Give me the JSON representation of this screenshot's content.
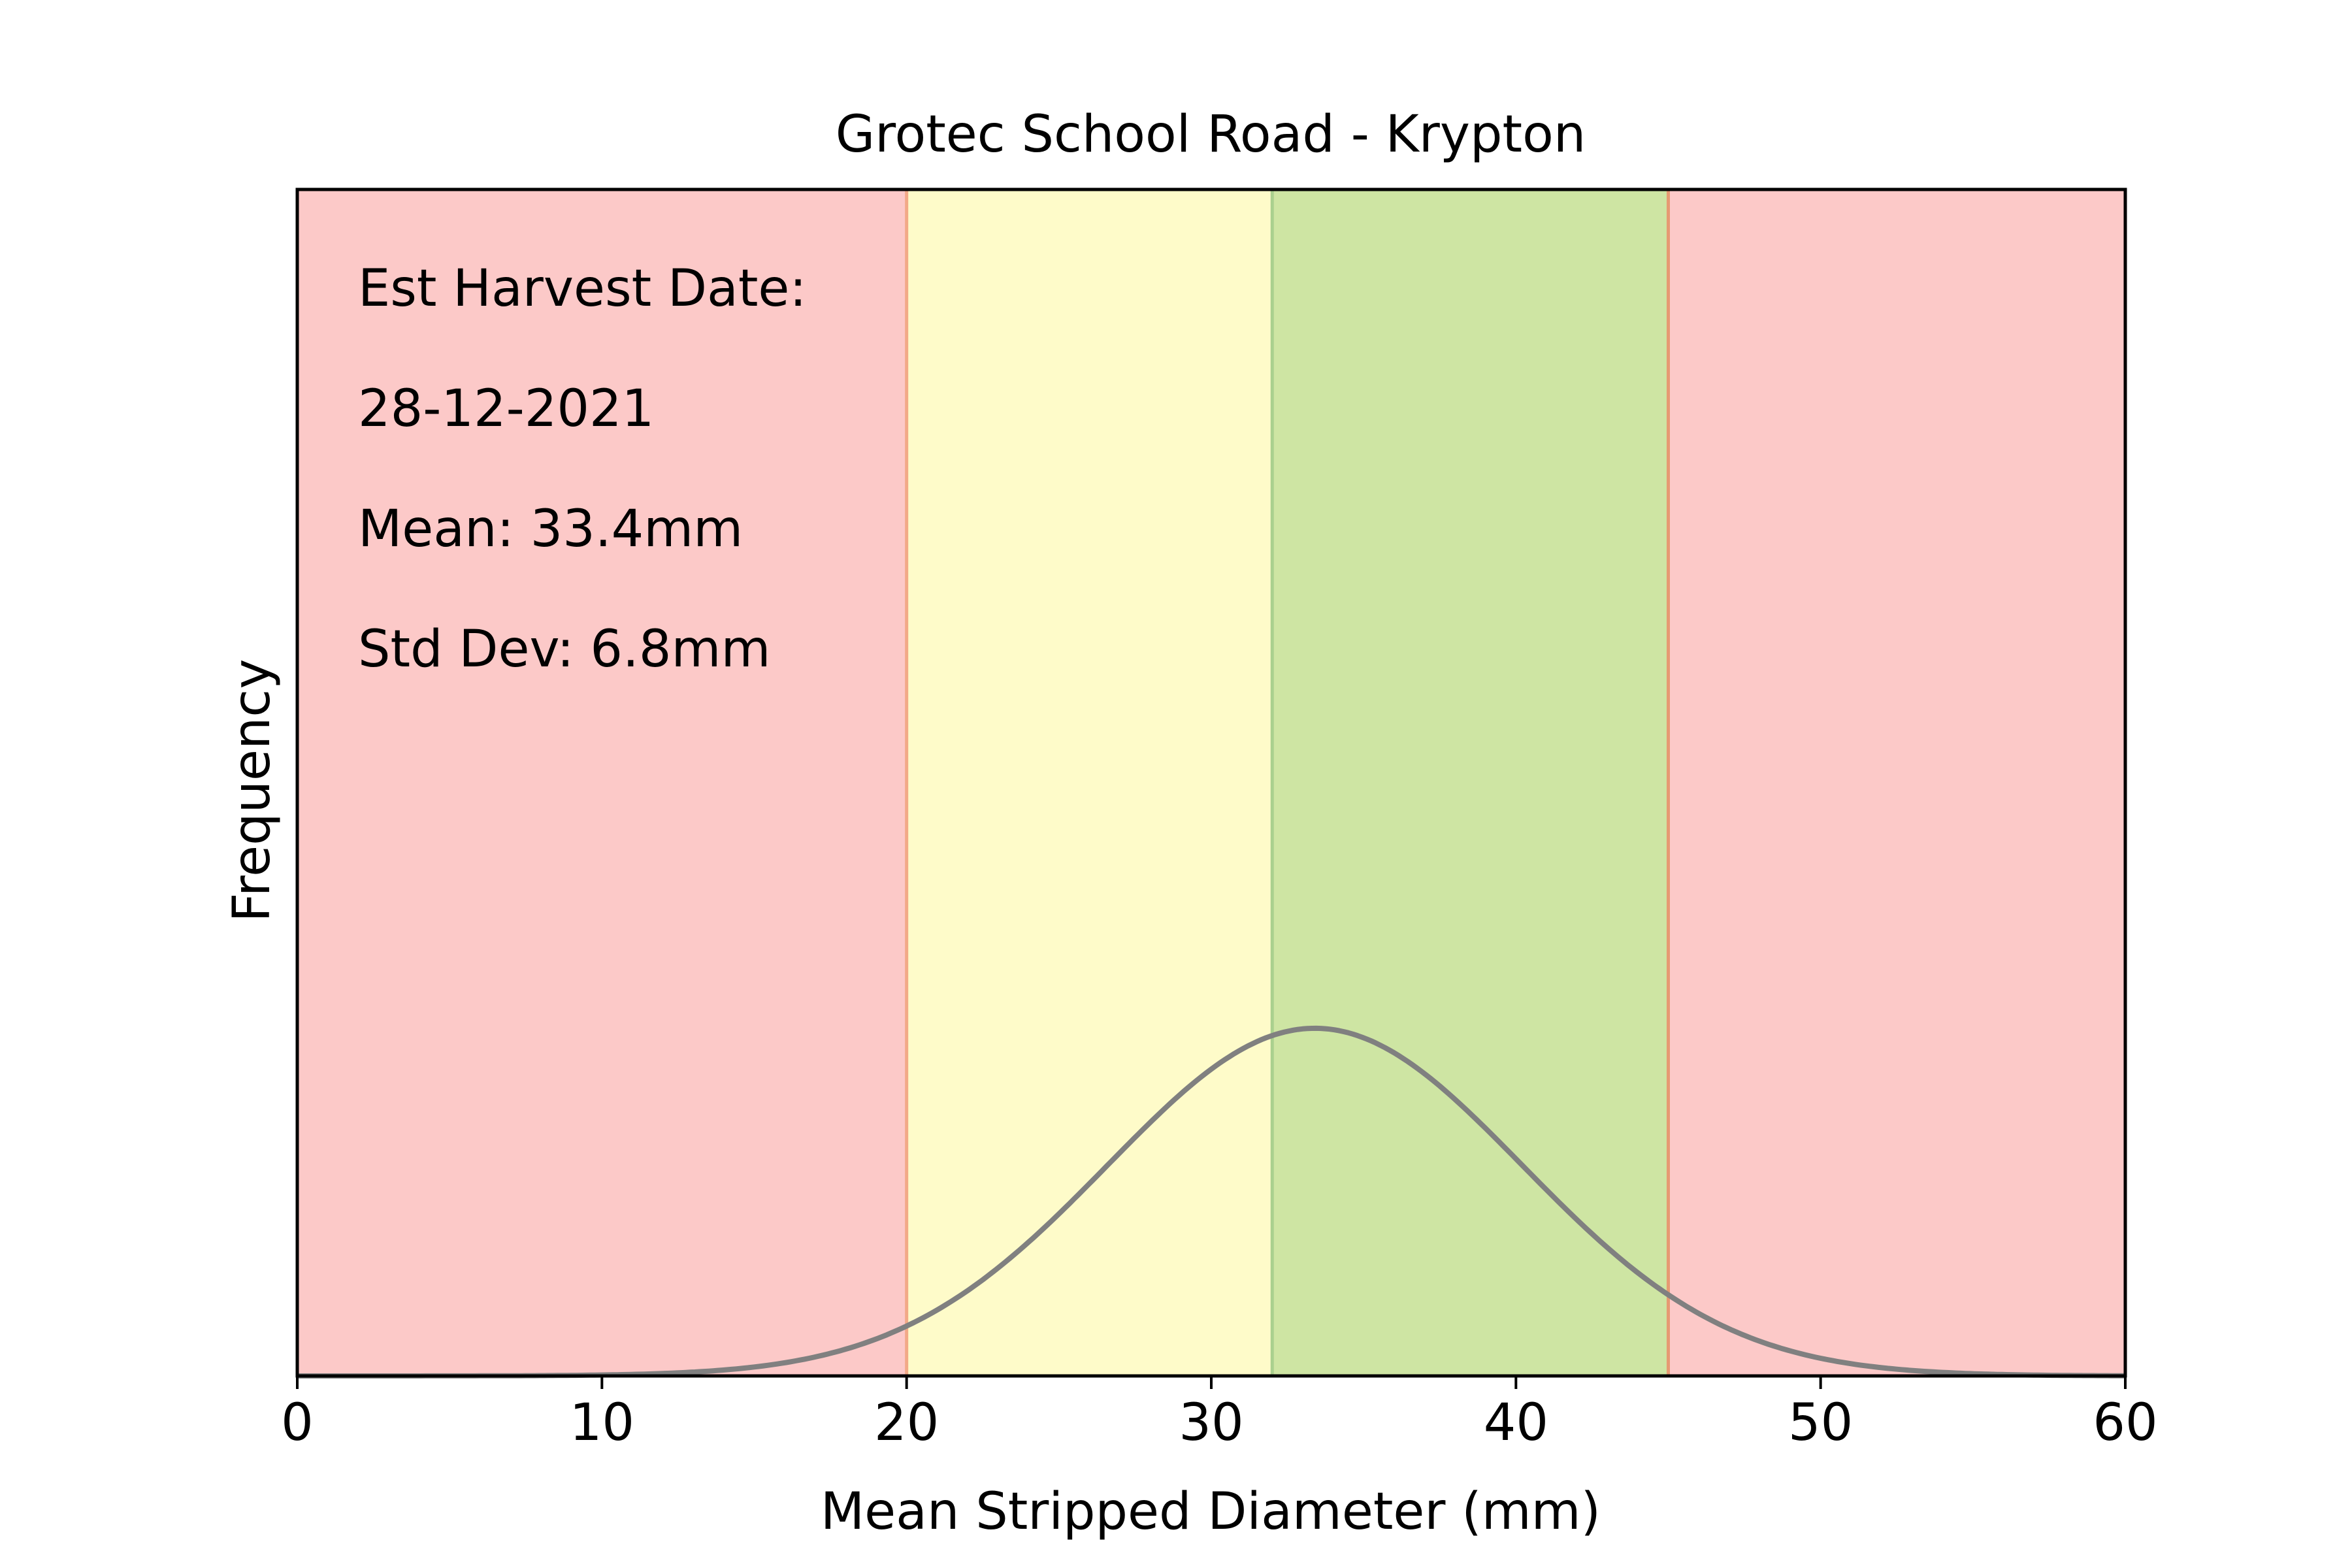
{
  "chart_data": {
    "type": "line",
    "title": "Grotec School Road - Krypton",
    "xlabel": "Mean Stripped Diameter (mm)",
    "ylabel": "Frequency",
    "xlim": [
      0,
      60
    ],
    "x_ticks": [
      0,
      10,
      20,
      30,
      40,
      50,
      60
    ],
    "y_ticks_visible": false,
    "grid": false,
    "bands": [
      {
        "from": 0,
        "to": 20,
        "color": "#fcc9c8"
      },
      {
        "from": 20,
        "to": 32,
        "color": "#fefbc9"
      },
      {
        "from": 32,
        "to": 45,
        "color": "#cee5a3"
      },
      {
        "from": 45,
        "to": 60,
        "color": "#fcc9c8"
      }
    ],
    "band_edges": [
      {
        "x": 20,
        "color": "#f2a987"
      },
      {
        "x": 32,
        "color": "#aad08e"
      },
      {
        "x": 45,
        "color": "#e69a72"
      }
    ],
    "series": [
      {
        "curve": "normal",
        "mean": 33.4,
        "std": 6.8,
        "color": "#808080"
      }
    ],
    "annotations": [
      "Est Harvest Date:",
      "28-12-2021",
      "Mean: 33.4mm",
      "Std Dev: 6.8mm"
    ]
  }
}
